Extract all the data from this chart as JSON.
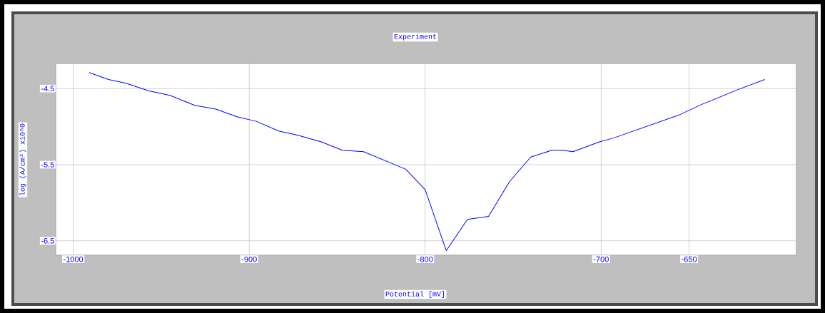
{
  "chart_data": {
    "type": "line",
    "title": "Experiment",
    "xlabel": "Potential [mV]",
    "ylabel": "log (A/cm²) x10^0",
    "x": [
      -991,
      -980,
      -970,
      -957,
      -945,
      -931,
      -919,
      -907,
      -896,
      -883,
      -873,
      -859,
      -847,
      -835,
      -811,
      -800,
      -788,
      -776,
      -764,
      -752,
      -740,
      -728,
      -722,
      -716,
      -701,
      -693,
      -656,
      -643,
      -623,
      -607
    ],
    "series": [
      {
        "color": "#0000ff",
        "values": [
          -4.29,
          -4.38,
          -4.43,
          -4.53,
          -4.59,
          -4.72,
          -4.77,
          -4.87,
          -4.93,
          -5.06,
          -5.11,
          -5.2,
          -5.31,
          -5.33,
          -5.56,
          -5.83,
          -6.63,
          -6.22,
          -6.18,
          -5.72,
          -5.4,
          -5.31,
          -5.31,
          -5.33,
          -5.2,
          -5.15,
          -4.85,
          -4.71,
          -4.52,
          -4.38
        ]
      }
    ],
    "xlim": [
      -1010,
      -589
    ],
    "ylim": [
      -6.69,
      -4.17
    ],
    "xticks": [
      -1000,
      -900,
      -800,
      -700,
      -650
    ],
    "yticks": [
      -4.5,
      -5.5,
      -6.5
    ],
    "grid": true,
    "marker": "none",
    "line_style": "solid"
  }
}
